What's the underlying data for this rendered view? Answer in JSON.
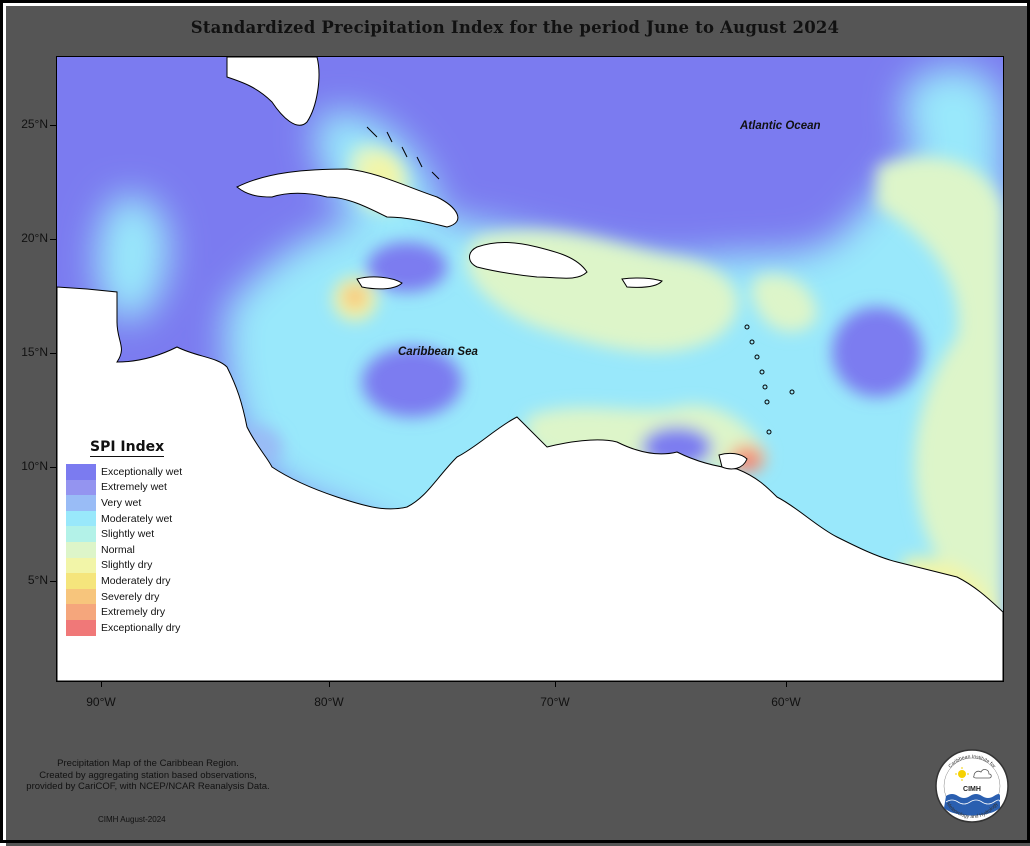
{
  "title": "Standardized Precipitation Index for the period June to August 2024",
  "map": {
    "labels": {
      "atlantic": "Atlantic Ocean",
      "caribbean": "Caribbean Sea"
    },
    "y_ticks": [
      "25°N",
      "20°N",
      "15°N",
      "10°N",
      "5°N"
    ],
    "x_ticks": [
      "90°W",
      "80°W",
      "70°W",
      "60°W"
    ]
  },
  "legend": {
    "title": "SPI Index",
    "items": [
      {
        "label": "Exceptionally wet",
        "color": "#7b7bf0"
      },
      {
        "label": "Extremely wet",
        "color": "#9494f0"
      },
      {
        "label": "Very wet",
        "color": "#99bcf6"
      },
      {
        "label": "Moderately wet",
        "color": "#99e8fb"
      },
      {
        "label": "Slightly wet",
        "color": "#b3f2e8"
      },
      {
        "label": "Normal",
        "color": "#ddf5c9"
      },
      {
        "label": "Slightly dry",
        "color": "#f2f5a8"
      },
      {
        "label": "Moderately dry",
        "color": "#f5e57c"
      },
      {
        "label": "Severely dry",
        "color": "#f7c57c"
      },
      {
        "label": "Extremely dry",
        "color": "#f5a67c"
      },
      {
        "label": "Exceptionally dry",
        "color": "#f07878"
      }
    ]
  },
  "credit": {
    "line1": "Precipitation Map of the Caribbean Region.",
    "line2": "Created by aggregating station based observations,",
    "line3": "provided by CariCOF, with NCEP/NCAR Reanalysis Data.",
    "date": "CIMH August-2024"
  },
  "logo": {
    "name": "CIMH",
    "top_text": "Caribbean Institute for",
    "bottom_text": "Meteorology and Hydrology"
  }
}
